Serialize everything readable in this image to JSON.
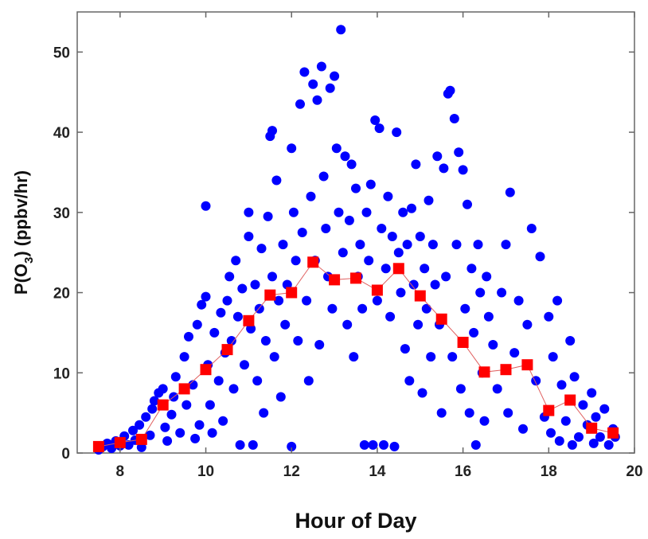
{
  "chart_data": {
    "type": "scatter",
    "xlabel": "Hour of Day",
    "ylabel_parts": {
      "pre": "P(O",
      "sub": "3",
      "post": ") (ppbv/hr)"
    },
    "xlim": [
      7,
      20
    ],
    "ylim": [
      0,
      55
    ],
    "xticks": [
      8,
      10,
      12,
      14,
      16,
      18,
      20
    ],
    "yticks": [
      0,
      10,
      20,
      30,
      40,
      50
    ],
    "grid": false,
    "colors": {
      "scatter": "#0000ff",
      "mean": "#ff0000",
      "line": "#e06060",
      "axis": "#666666"
    },
    "series": [
      {
        "marker": "circle",
        "points": [
          [
            7.5,
            0.4
          ],
          [
            7.6,
            0.8
          ],
          [
            7.7,
            1.2
          ],
          [
            7.8,
            0.6
          ],
          [
            7.9,
            1.5
          ],
          [
            8.0,
            0.9
          ],
          [
            8.1,
            2.1
          ],
          [
            8.2,
            1.0
          ],
          [
            8.3,
            2.8
          ],
          [
            8.35,
            1.6
          ],
          [
            8.45,
            3.5
          ],
          [
            8.5,
            0.7
          ],
          [
            8.6,
            4.5
          ],
          [
            8.7,
            2.2
          ],
          [
            8.75,
            5.5
          ],
          [
            8.8,
            6.5
          ],
          [
            8.9,
            7.5
          ],
          [
            9.0,
            8.0
          ],
          [
            9.05,
            3.2
          ],
          [
            9.1,
            1.5
          ],
          [
            9.2,
            4.8
          ],
          [
            9.25,
            7.0
          ],
          [
            9.3,
            9.5
          ],
          [
            9.4,
            2.5
          ],
          [
            9.5,
            12.0
          ],
          [
            9.55,
            6.0
          ],
          [
            9.6,
            14.5
          ],
          [
            9.7,
            8.5
          ],
          [
            9.75,
            1.8
          ],
          [
            9.8,
            16.0
          ],
          [
            9.85,
            3.5
          ],
          [
            9.9,
            18.5
          ],
          [
            10.0,
            19.5
          ],
          [
            10.0,
            30.8
          ],
          [
            10.05,
            11.0
          ],
          [
            10.1,
            6.0
          ],
          [
            10.15,
            2.5
          ],
          [
            10.2,
            15.0
          ],
          [
            10.3,
            9.0
          ],
          [
            10.35,
            17.5
          ],
          [
            10.4,
            4.0
          ],
          [
            10.45,
            12.5
          ],
          [
            10.5,
            19.0
          ],
          [
            10.55,
            22.0
          ],
          [
            10.6,
            14.0
          ],
          [
            10.65,
            8.0
          ],
          [
            10.7,
            24.0
          ],
          [
            10.75,
            17.0
          ],
          [
            10.8,
            1.0
          ],
          [
            10.85,
            20.5
          ],
          [
            10.9,
            11.0
          ],
          [
            11.0,
            27.0
          ],
          [
            11.0,
            30.0
          ],
          [
            11.05,
            15.5
          ],
          [
            11.1,
            1.0
          ],
          [
            11.15,
            21.0
          ],
          [
            11.2,
            9.0
          ],
          [
            11.25,
            18.0
          ],
          [
            11.3,
            25.5
          ],
          [
            11.35,
            5.0
          ],
          [
            11.4,
            14.0
          ],
          [
            11.45,
            29.5
          ],
          [
            11.5,
            39.5
          ],
          [
            11.55,
            40.2
          ],
          [
            11.55,
            22.0
          ],
          [
            11.6,
            12.0
          ],
          [
            11.65,
            34.0
          ],
          [
            11.7,
            19.0
          ],
          [
            11.75,
            7.0
          ],
          [
            11.8,
            26.0
          ],
          [
            11.85,
            16.0
          ],
          [
            11.9,
            21.0
          ],
          [
            12.0,
            38.0
          ],
          [
            12.0,
            0.8
          ],
          [
            12.05,
            30.0
          ],
          [
            12.1,
            24.0
          ],
          [
            12.15,
            14.0
          ],
          [
            12.2,
            43.5
          ],
          [
            12.25,
            27.5
          ],
          [
            12.3,
            47.5
          ],
          [
            12.35,
            19.0
          ],
          [
            12.4,
            9.0
          ],
          [
            12.45,
            32.0
          ],
          [
            12.5,
            46.0
          ],
          [
            12.55,
            24.0
          ],
          [
            12.6,
            44.0
          ],
          [
            12.65,
            13.5
          ],
          [
            12.7,
            48.2
          ],
          [
            12.75,
            34.5
          ],
          [
            12.8,
            28.0
          ],
          [
            12.85,
            22.0
          ],
          [
            12.9,
            45.5
          ],
          [
            12.95,
            18.0
          ],
          [
            13.0,
            47.0
          ],
          [
            13.05,
            38.0
          ],
          [
            13.1,
            30.0
          ],
          [
            13.15,
            52.8
          ],
          [
            13.2,
            25.0
          ],
          [
            13.25,
            37.0
          ],
          [
            13.3,
            16.0
          ],
          [
            13.35,
            29.0
          ],
          [
            13.4,
            36.0
          ],
          [
            13.45,
            12.0
          ],
          [
            13.5,
            33.0
          ],
          [
            13.55,
            22.0
          ],
          [
            13.6,
            26.0
          ],
          [
            13.65,
            18.0
          ],
          [
            13.7,
            1.0
          ],
          [
            13.75,
            30.0
          ],
          [
            13.8,
            24.0
          ],
          [
            13.85,
            33.5
          ],
          [
            13.9,
            1.0
          ],
          [
            13.95,
            41.5
          ],
          [
            14.0,
            19.0
          ],
          [
            14.05,
            40.5
          ],
          [
            14.1,
            28.0
          ],
          [
            14.15,
            1.0
          ],
          [
            14.2,
            23.0
          ],
          [
            14.25,
            32.0
          ],
          [
            14.3,
            17.0
          ],
          [
            14.35,
            27.0
          ],
          [
            14.4,
            0.8
          ],
          [
            14.45,
            40.0
          ],
          [
            14.5,
            25.0
          ],
          [
            14.55,
            20.0
          ],
          [
            14.6,
            30.0
          ],
          [
            14.65,
            13.0
          ],
          [
            14.7,
            26.0
          ],
          [
            14.75,
            9.0
          ],
          [
            14.8,
            30.5
          ],
          [
            14.85,
            21.0
          ],
          [
            14.9,
            36.0
          ],
          [
            14.95,
            16.0
          ],
          [
            15.0,
            27.0
          ],
          [
            15.05,
            7.5
          ],
          [
            15.1,
            23.0
          ],
          [
            15.15,
            18.0
          ],
          [
            15.2,
            31.5
          ],
          [
            15.25,
            12.0
          ],
          [
            15.3,
            26.0
          ],
          [
            15.35,
            21.0
          ],
          [
            15.4,
            37.0
          ],
          [
            15.45,
            16.0
          ],
          [
            15.5,
            5.0
          ],
          [
            15.55,
            35.5
          ],
          [
            15.6,
            22.0
          ],
          [
            15.65,
            44.8
          ],
          [
            15.7,
            45.2
          ],
          [
            15.75,
            12.0
          ],
          [
            15.8,
            41.7
          ],
          [
            15.85,
            26.0
          ],
          [
            15.9,
            37.5
          ],
          [
            15.95,
            8.0
          ],
          [
            16.0,
            35.3
          ],
          [
            16.05,
            18.0
          ],
          [
            16.1,
            31.0
          ],
          [
            16.15,
            5.0
          ],
          [
            16.2,
            23.0
          ],
          [
            16.25,
            15.0
          ],
          [
            16.3,
            1.0
          ],
          [
            16.35,
            26.0
          ],
          [
            16.4,
            20.0
          ],
          [
            16.45,
            10.0
          ],
          [
            16.5,
            4.0
          ],
          [
            16.55,
            22.0
          ],
          [
            16.6,
            17.0
          ],
          [
            16.7,
            13.5
          ],
          [
            16.8,
            8.0
          ],
          [
            16.9,
            20.0
          ],
          [
            17.0,
            26.0
          ],
          [
            17.05,
            5.0
          ],
          [
            17.1,
            32.5
          ],
          [
            17.2,
            12.5
          ],
          [
            17.3,
            19.0
          ],
          [
            17.4,
            3.0
          ],
          [
            17.5,
            16.0
          ],
          [
            17.6,
            28.0
          ],
          [
            17.7,
            9.0
          ],
          [
            17.8,
            24.5
          ],
          [
            17.9,
            4.5
          ],
          [
            18.0,
            17.0
          ],
          [
            18.05,
            2.5
          ],
          [
            18.1,
            12.0
          ],
          [
            18.2,
            19.0
          ],
          [
            18.25,
            1.5
          ],
          [
            18.3,
            8.5
          ],
          [
            18.4,
            4.0
          ],
          [
            18.5,
            14.0
          ],
          [
            18.55,
            1.0
          ],
          [
            18.6,
            9.5
          ],
          [
            18.7,
            2.0
          ],
          [
            18.8,
            6.0
          ],
          [
            18.9,
            3.5
          ],
          [
            19.0,
            7.5
          ],
          [
            19.05,
            1.2
          ],
          [
            19.1,
            4.5
          ],
          [
            19.2,
            2.0
          ],
          [
            19.3,
            5.5
          ],
          [
            19.4,
            1.0
          ],
          [
            19.5,
            3.0
          ],
          [
            19.55,
            2.0
          ]
        ]
      },
      {
        "marker": "square",
        "points": [
          [
            7.5,
            0.8
          ],
          [
            8.0,
            1.3
          ],
          [
            8.5,
            1.7
          ],
          [
            9.0,
            6.0
          ],
          [
            9.5,
            8.0
          ],
          [
            10.0,
            10.4
          ],
          [
            10.5,
            12.9
          ],
          [
            11.0,
            16.5
          ],
          [
            11.5,
            19.7
          ],
          [
            12.0,
            20.0
          ],
          [
            12.5,
            23.8
          ],
          [
            13.0,
            21.6
          ],
          [
            13.5,
            21.8
          ],
          [
            14.0,
            20.3
          ],
          [
            14.5,
            23.0
          ],
          [
            15.0,
            19.6
          ],
          [
            15.5,
            16.7
          ],
          [
            16.0,
            13.8
          ],
          [
            16.5,
            10.1
          ],
          [
            17.0,
            10.4
          ],
          [
            17.5,
            11.0
          ],
          [
            18.0,
            5.3
          ],
          [
            18.5,
            6.6
          ],
          [
            19.0,
            3.1
          ],
          [
            19.5,
            2.5
          ]
        ]
      }
    ]
  }
}
